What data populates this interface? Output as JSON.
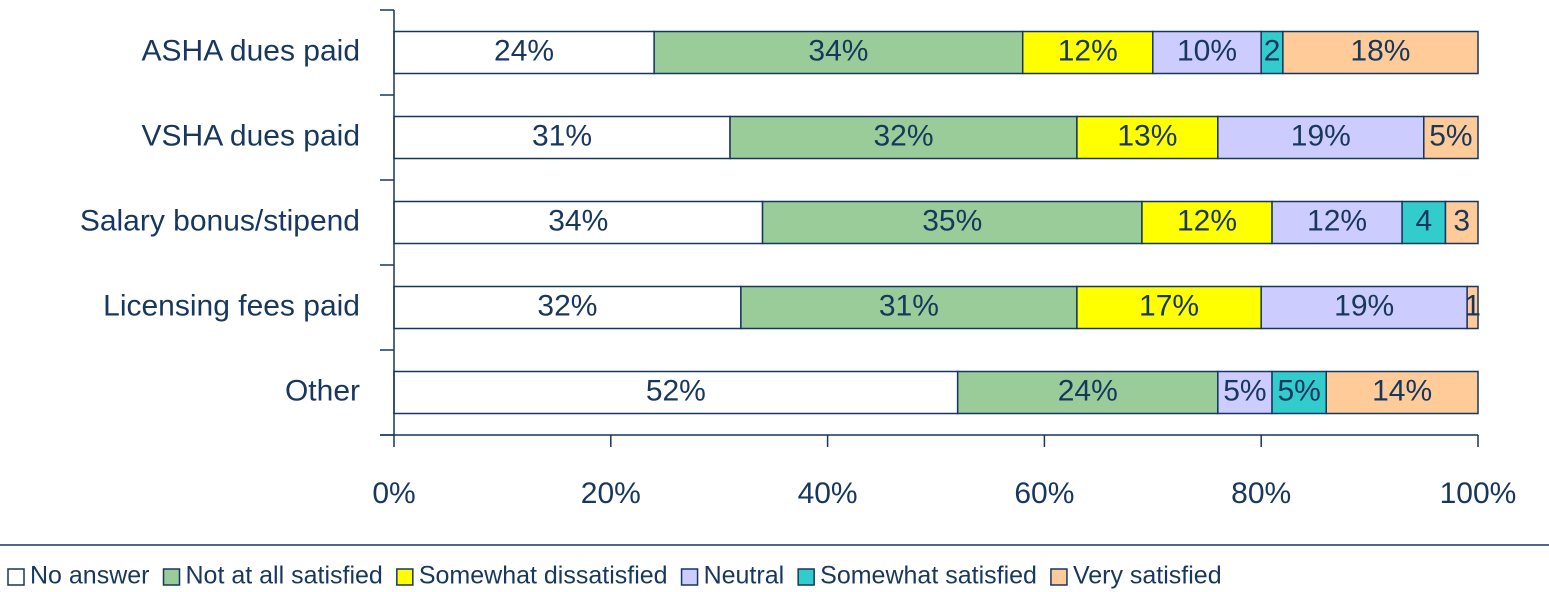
{
  "chart_data": {
    "type": "stacked-bar-horizontal",
    "categories": [
      "ASHA dues paid",
      "VSHA dues paid",
      "Salary bonus/stipend",
      "Licensing fees paid",
      "Other"
    ],
    "series": [
      {
        "name": "No answer",
        "color": "#ffffff",
        "values": [
          24,
          31,
          34,
          32,
          52
        ],
        "value_labels": [
          "24%",
          "31%",
          "34%",
          "32%",
          "52%"
        ]
      },
      {
        "name": "Not at all satisfied",
        "color": "#99cc99",
        "values": [
          34,
          32,
          35,
          31,
          24
        ],
        "value_labels": [
          "34%",
          "32%",
          "35%",
          "31%",
          "24%"
        ]
      },
      {
        "name": "Somewhat dissatisfied",
        "color": "#ffff00",
        "values": [
          12,
          13,
          12,
          17,
          0
        ],
        "value_labels": [
          "12%",
          "13%",
          "12%",
          "17%",
          null
        ]
      },
      {
        "name": "Neutral",
        "color": "#ccccff",
        "values": [
          10,
          19,
          12,
          19,
          5
        ],
        "value_labels": [
          "10%",
          "19%",
          "12%",
          "19%",
          "5%"
        ]
      },
      {
        "name": "Somewhat satisfied",
        "color": "#33cccc",
        "values": [
          2,
          0,
          4,
          0,
          5
        ],
        "value_labels": [
          "2",
          null,
          "4",
          null,
          "5%"
        ]
      },
      {
        "name": "Very satisfied",
        "color": "#ffcc99",
        "values": [
          18,
          5,
          3,
          1,
          14
        ],
        "value_labels": [
          "18%",
          "5%",
          "3",
          "1",
          "14%"
        ]
      }
    ],
    "xlim": [
      0,
      100
    ],
    "xticks": [
      {
        "value": 0,
        "label": "0%"
      },
      {
        "value": 20,
        "label": "20%"
      },
      {
        "value": 40,
        "label": "40%"
      },
      {
        "value": 60,
        "label": "60%"
      },
      {
        "value": 80,
        "label": "80%"
      },
      {
        "value": 100,
        "label": "100%"
      }
    ],
    "legend": "bottom"
  }
}
